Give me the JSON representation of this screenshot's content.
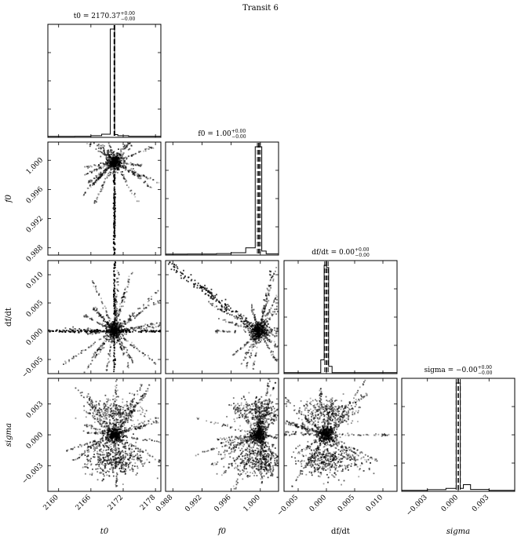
{
  "figure": {
    "title": "Transit 6"
  },
  "chart_data": {
    "type": "corner",
    "title": "Transit 6",
    "parameters": [
      {
        "key": "t0",
        "label": "t0",
        "title": "t0 = 2170.37",
        "sup": "+0.00",
        "sub": "−0.00",
        "range": [
          2158,
          2179
        ],
        "ticks": [
          2160,
          2166,
          2172,
          2178
        ],
        "tick_labels": [
          "2160",
          "2166",
          "2172",
          "2178"
        ],
        "center": 2170.37
      },
      {
        "key": "f0",
        "label": "f0",
        "title": "f0 = 1.00",
        "sup": "+0.00",
        "sub": "−0.00",
        "range": [
          0.987,
          1.0025
        ],
        "ticks": [
          0.988,
          0.992,
          0.996,
          1.0
        ],
        "tick_labels": [
          "0.988",
          "0.992",
          "0.996",
          "1.000"
        ],
        "center": 0.9998
      },
      {
        "key": "dfdt",
        "label": "df/dt",
        "title": "df/dt = 0.00",
        "sup": "+0.00",
        "sub": "−0.00",
        "range": [
          -0.0075,
          0.0125
        ],
        "ticks": [
          -0.005,
          0.0,
          0.005,
          0.01
        ],
        "tick_labels": [
          "−0.005",
          "0.000",
          "0.005",
          "0.010"
        ],
        "center": 0.0
      },
      {
        "key": "sigma",
        "label": "sigma",
        "title": "sigma = −0.00",
        "sup": "+0.00",
        "sub": "−0.00",
        "range": [
          -0.0055,
          0.0055
        ],
        "ticks": [
          -0.003,
          0.0,
          0.003
        ],
        "tick_labels": [
          "−0.003",
          "0.000",
          "0.003"
        ],
        "center": 0.0
      }
    ],
    "histograms": {
      "t0": {
        "bins": [
          2158,
          2163,
          2166,
          2168,
          2169.6,
          2170.4,
          2171,
          2173,
          2179
        ],
        "counts": [
          2,
          3,
          8,
          22,
          1000,
          18,
          8,
          3
        ]
      },
      "f0": {
        "bins": [
          0.987,
          0.99,
          0.994,
          0.996,
          0.998,
          0.9993,
          1.0002,
          1.0008,
          1.0025
        ],
        "counts": [
          2,
          3,
          6,
          15,
          60,
          1000,
          30,
          5
        ]
      },
      "dfdt": {
        "bins": [
          -0.0075,
          -0.001,
          -0.0004,
          0.0,
          0.0004,
          0.001,
          0.0125
        ],
        "counts": [
          2,
          120,
          1000,
          980,
          60,
          2
        ]
      },
      "sigma": {
        "bins": [
          -0.0055,
          -0.003,
          -0.0012,
          -0.0005,
          -0.0002,
          0.0002,
          0.0005,
          0.0012,
          0.003,
          0.0055
        ],
        "counts": [
          2,
          8,
          20,
          20,
          1000,
          20,
          55,
          10,
          2
        ]
      }
    },
    "vlines": {
      "t0": [
        2170.3,
        2170.37,
        2170.44
      ],
      "f0": [
        0.9996,
        0.9998,
        1.0
      ],
      "dfdt": [
        -0.0003,
        0.0,
        0.0003
      ],
      "sigma": [
        -0.0002,
        0.0,
        0.0002
      ]
    },
    "grid": false,
    "legend": "none"
  }
}
